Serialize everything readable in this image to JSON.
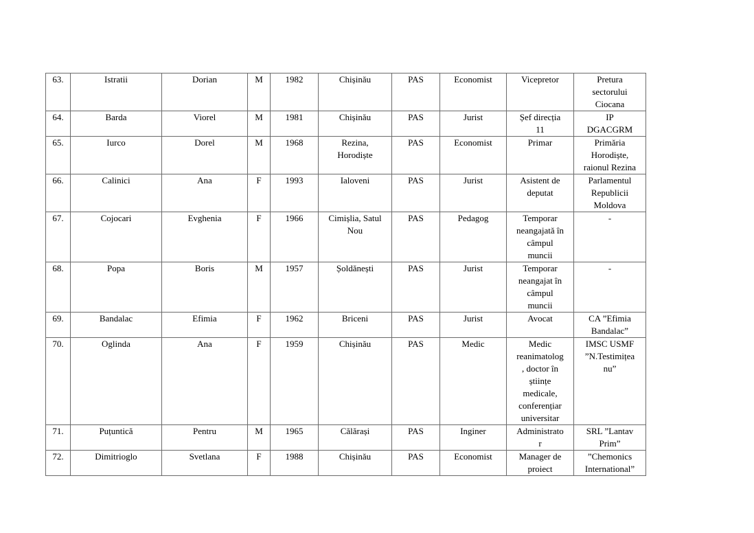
{
  "page": {
    "background_color": "#ffffff",
    "text_color": "#000000",
    "border_color": "#6a6a6a"
  },
  "table": {
    "rows": [
      [
        "63.",
        "Istratii",
        "Dorian",
        "M",
        "1982",
        "Chișinău",
        "PAS",
        "Economist",
        "Vicepretor",
        "Pretura\nsectorului\nCiocana"
      ],
      [
        "64.",
        "Barda",
        "Viorel",
        "M",
        "1981",
        "Chișinău",
        "PAS",
        "Jurist",
        "Șef direcția\n11",
        "IP\nDGACGRM"
      ],
      [
        "65.",
        "Iurco",
        "Dorel",
        "M",
        "1968",
        "Rezina,\nHorodiște",
        "PAS",
        "Economist",
        "Primar",
        "Primăria\nHorodiște,\nraionul Rezina"
      ],
      [
        "66.",
        "Calinici",
        "Ana",
        "F",
        "1993",
        "Ialoveni",
        "PAS",
        "Jurist",
        "Asistent de\ndeputat",
        "Parlamentul\nRepublicii\nMoldova"
      ],
      [
        "67.",
        "Cojocari",
        "Evghenia",
        "F",
        "1966",
        "Cimișlia, Satul\nNou",
        "PAS",
        "Pedagog",
        "Temporar\nneangajată în\ncâmpul\nmuncii",
        "-"
      ],
      [
        "68.",
        "Popa",
        "Boris",
        "M",
        "1957",
        "Șoldănești",
        "PAS",
        "Jurist",
        "Temporar\nneangajat în\ncâmpul\nmuncii",
        "-"
      ],
      [
        "69.",
        "Bandalac",
        "Efimia",
        "F",
        "1962",
        "Briceni",
        "PAS",
        "Jurist",
        "Avocat",
        "CA ”Efimia\nBandalac”"
      ],
      [
        "70.",
        "Oglinda",
        "Ana",
        "F",
        "1959",
        "Chișinău",
        "PAS",
        "Medic",
        "Medic\nreanimatolog\n, doctor în\nștiințe\nmedicale,\nconferențiar\nuniversitar",
        "IMSC USMF\n”N.Testimițea\nnu”"
      ],
      [
        "71.",
        "Puțuntică",
        "Pentru",
        "M",
        "1965",
        "Călărași",
        "PAS",
        "Inginer",
        "Administrato\nr",
        "SRL ”Lantav\nPrim”"
      ],
      [
        "72.",
        "Dimitrioglo",
        "Svetlana",
        "F",
        "1988",
        "Chișinău",
        "PAS",
        "Economist",
        "Manager de\nproiect",
        "”Chemonics\nInternational”"
      ]
    ]
  }
}
